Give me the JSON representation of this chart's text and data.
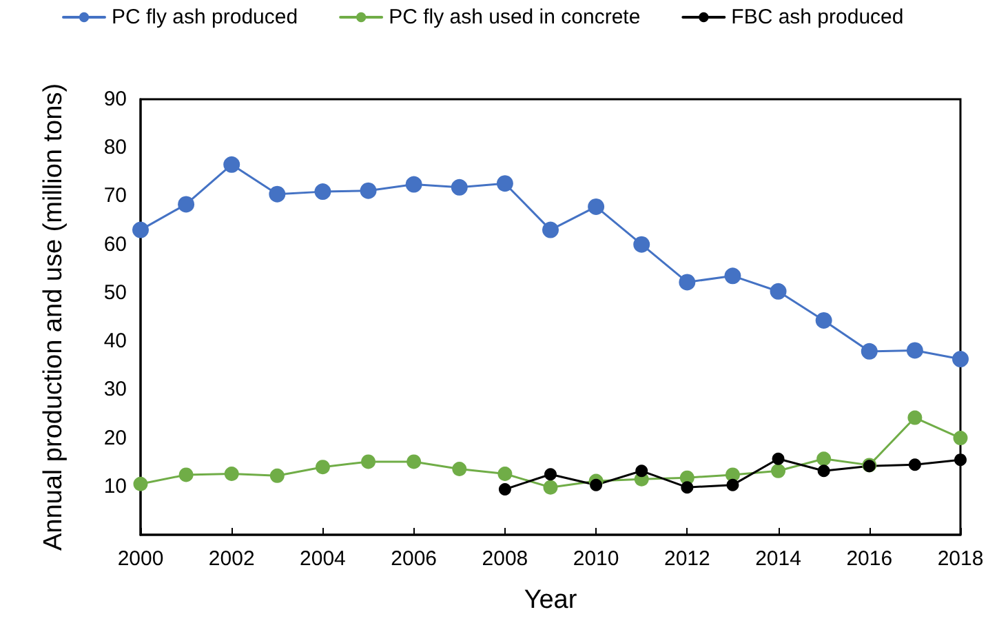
{
  "chart_data": {
    "type": "line",
    "xlabel": "Year",
    "ylabel": "Annual production and use (million tons)",
    "x": [
      2000,
      2001,
      2002,
      2003,
      2004,
      2005,
      2006,
      2007,
      2008,
      2009,
      2010,
      2011,
      2012,
      2013,
      2014,
      2015,
      2016,
      2017,
      2018
    ],
    "series": [
      {
        "name": "PC fly ash produced",
        "color": "#4472c4",
        "values": [
          63.0,
          68.3,
          76.5,
          70.4,
          70.9,
          71.1,
          72.4,
          71.8,
          72.6,
          63.0,
          67.8,
          60.0,
          52.2,
          53.5,
          50.3,
          44.3,
          37.9,
          38.1,
          36.3
        ]
      },
      {
        "name": "PC fly ash used in concrete",
        "color": "#70ad47",
        "values": [
          10.5,
          12.4,
          12.6,
          12.2,
          14.0,
          15.1,
          15.1,
          13.6,
          12.6,
          9.8,
          11.1,
          11.5,
          11.8,
          12.4,
          13.2,
          15.7,
          14.4,
          24.2,
          20.0
        ]
      },
      {
        "name": "FBC ash produced",
        "color": "#000000",
        "x": [
          2008,
          2009,
          2010,
          2011,
          2012,
          2013,
          2014,
          2015,
          2016,
          2017,
          2018
        ],
        "values": [
          9.4,
          12.5,
          10.3,
          13.2,
          9.8,
          10.3,
          15.7,
          13.2,
          14.2,
          14.5,
          15.5
        ]
      }
    ],
    "xlim": [
      2000,
      2018
    ],
    "xticks": [
      2000,
      2002,
      2004,
      2006,
      2008,
      2010,
      2012,
      2014,
      2016,
      2018
    ],
    "ylim": [
      0,
      90
    ],
    "yticks": [
      10,
      20,
      30,
      40,
      50,
      60,
      70,
      80,
      90
    ],
    "grid": false,
    "legend": "top",
    "marker": "circle",
    "line_style": "solid"
  }
}
